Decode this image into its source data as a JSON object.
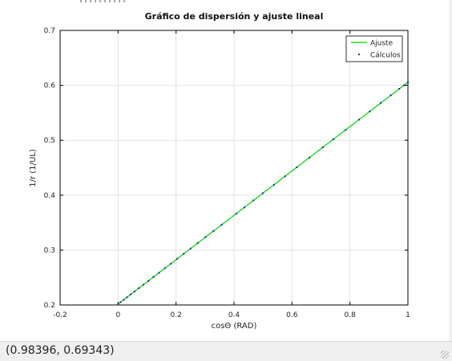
{
  "window": {
    "statusbar": {
      "coordinates": "(0.98396, 0.69343)"
    }
  },
  "chart_data": {
    "type": "scatter",
    "title": "Gráfico de dispersión y ajuste lineal",
    "xlabel": "cosΘ (RAD)",
    "ylabel": "1/r (1/UL)",
    "xlim": [
      -0.2,
      1
    ],
    "ylim": [
      0.2,
      0.7
    ],
    "x_ticks": [
      "-0.2",
      "0",
      "0.2",
      "0.4",
      "0.6",
      "0.8",
      "1"
    ],
    "y_ticks": [
      "0.2",
      "0.3",
      "0.4",
      "0.5",
      "0.6",
      "0.7"
    ],
    "grid": true,
    "legend_position": "top-right",
    "colors": {
      "fit": "#00d000",
      "points": "#0a3a8a",
      "grid": "#e2e2e2",
      "axis": "#000000"
    },
    "series": [
      {
        "name": "Ajuste",
        "kind": "line",
        "x": [
          0,
          1
        ],
        "y": [
          0.2016,
          0.6057
        ]
      },
      {
        "name": "Cálculos",
        "kind": "points",
        "x": [
          0.0,
          0.0087,
          0.0194,
          0.0307,
          0.0432,
          0.057,
          0.072,
          0.0878,
          0.1045,
          0.1224,
          0.1414,
          0.1614,
          0.1822,
          0.2038,
          0.2264,
          0.2501,
          0.2752,
          0.3017,
          0.3289,
          0.3576,
          0.4077,
          0.4358,
          0.4669,
          0.4995,
          0.5376,
          0.5759,
          0.6168,
          0.6599,
          0.7063,
          0.743,
          0.7851,
          0.8314,
          0.8683,
          0.9063,
          0.941,
          0.9699,
          0.9863,
          1.0
        ],
        "y": [
          0.2016,
          0.2051,
          0.2094,
          0.214,
          0.2191,
          0.2246,
          0.2307,
          0.2371,
          0.2438,
          0.251,
          0.2587,
          0.2668,
          0.2752,
          0.284,
          0.2931,
          0.3027,
          0.3128,
          0.3235,
          0.3346,
          0.3461,
          0.3664,
          0.3777,
          0.3903,
          0.4035,
          0.4188,
          0.4343,
          0.4508,
          0.4683,
          0.487,
          0.5018,
          0.5189,
          0.5376,
          0.5525,
          0.5678,
          0.5818,
          0.5935,
          0.6001,
          0.6057
        ]
      }
    ]
  }
}
